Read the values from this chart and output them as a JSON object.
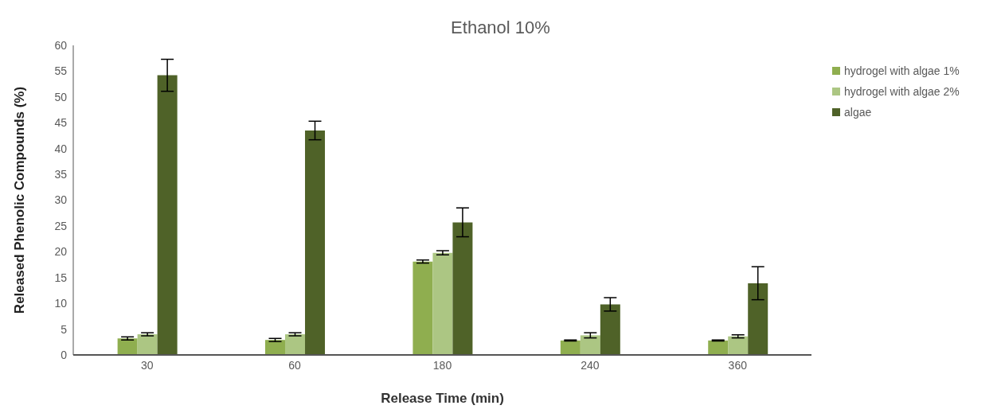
{
  "chart_data": {
    "type": "bar",
    "title": "Ethanol 10%",
    "xlabel": "Release Time (min)",
    "ylabel": "Released Phenolic Compounds (%)",
    "categories": [
      "30",
      "60",
      "180",
      "240",
      "360"
    ],
    "series": [
      {
        "name": "hydrogel with algae 1%",
        "color": "#8fae4f",
        "values": [
          3.2,
          2.9,
          18.1,
          2.8,
          2.8
        ],
        "errors": [
          0.3,
          0.3,
          0.3,
          0.1,
          0.1
        ]
      },
      {
        "name": "hydrogel with algae 2%",
        "color": "#acc683",
        "values": [
          4.0,
          4.0,
          19.8,
          3.8,
          3.6
        ],
        "errors": [
          0.3,
          0.3,
          0.4,
          0.5,
          0.3
        ]
      },
      {
        "name": "algae",
        "color": "#4f6228",
        "values": [
          54.2,
          43.5,
          25.7,
          9.8,
          13.9
        ],
        "errors": [
          3.1,
          1.8,
          2.8,
          1.3,
          3.2
        ]
      }
    ],
    "ylim": [
      0,
      60
    ],
    "yticks": [
      0,
      5,
      10,
      15,
      20,
      25,
      30,
      35,
      40,
      45,
      50,
      55,
      60
    ],
    "grid": false,
    "legend": "top right"
  }
}
